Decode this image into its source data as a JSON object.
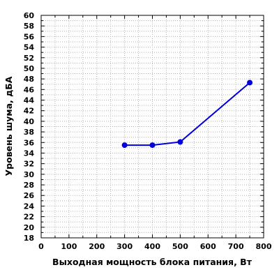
{
  "chart_data": {
    "type": "line",
    "title": "",
    "xlabel": "Выходная мощность блока питания, Вт",
    "ylabel": "Уровень шума, дБА",
    "xlim": [
      0,
      800
    ],
    "ylim": [
      18,
      60
    ],
    "x_ticks": [
      "0",
      "100",
      "200",
      "300",
      "400",
      "500",
      "600",
      "700",
      "800"
    ],
    "y_ticks": [
      "18",
      "20",
      "22",
      "24",
      "26",
      "28",
      "30",
      "32",
      "34",
      "36",
      "38",
      "40",
      "42",
      "44",
      "46",
      "48",
      "50",
      "52",
      "54",
      "56",
      "58",
      "60"
    ],
    "grid": true,
    "series": [
      {
        "color": "#0000dd",
        "x": [
          300,
          400,
          500,
          750
        ],
        "y": [
          35.5,
          35.5,
          36.1,
          47.3
        ]
      }
    ]
  }
}
